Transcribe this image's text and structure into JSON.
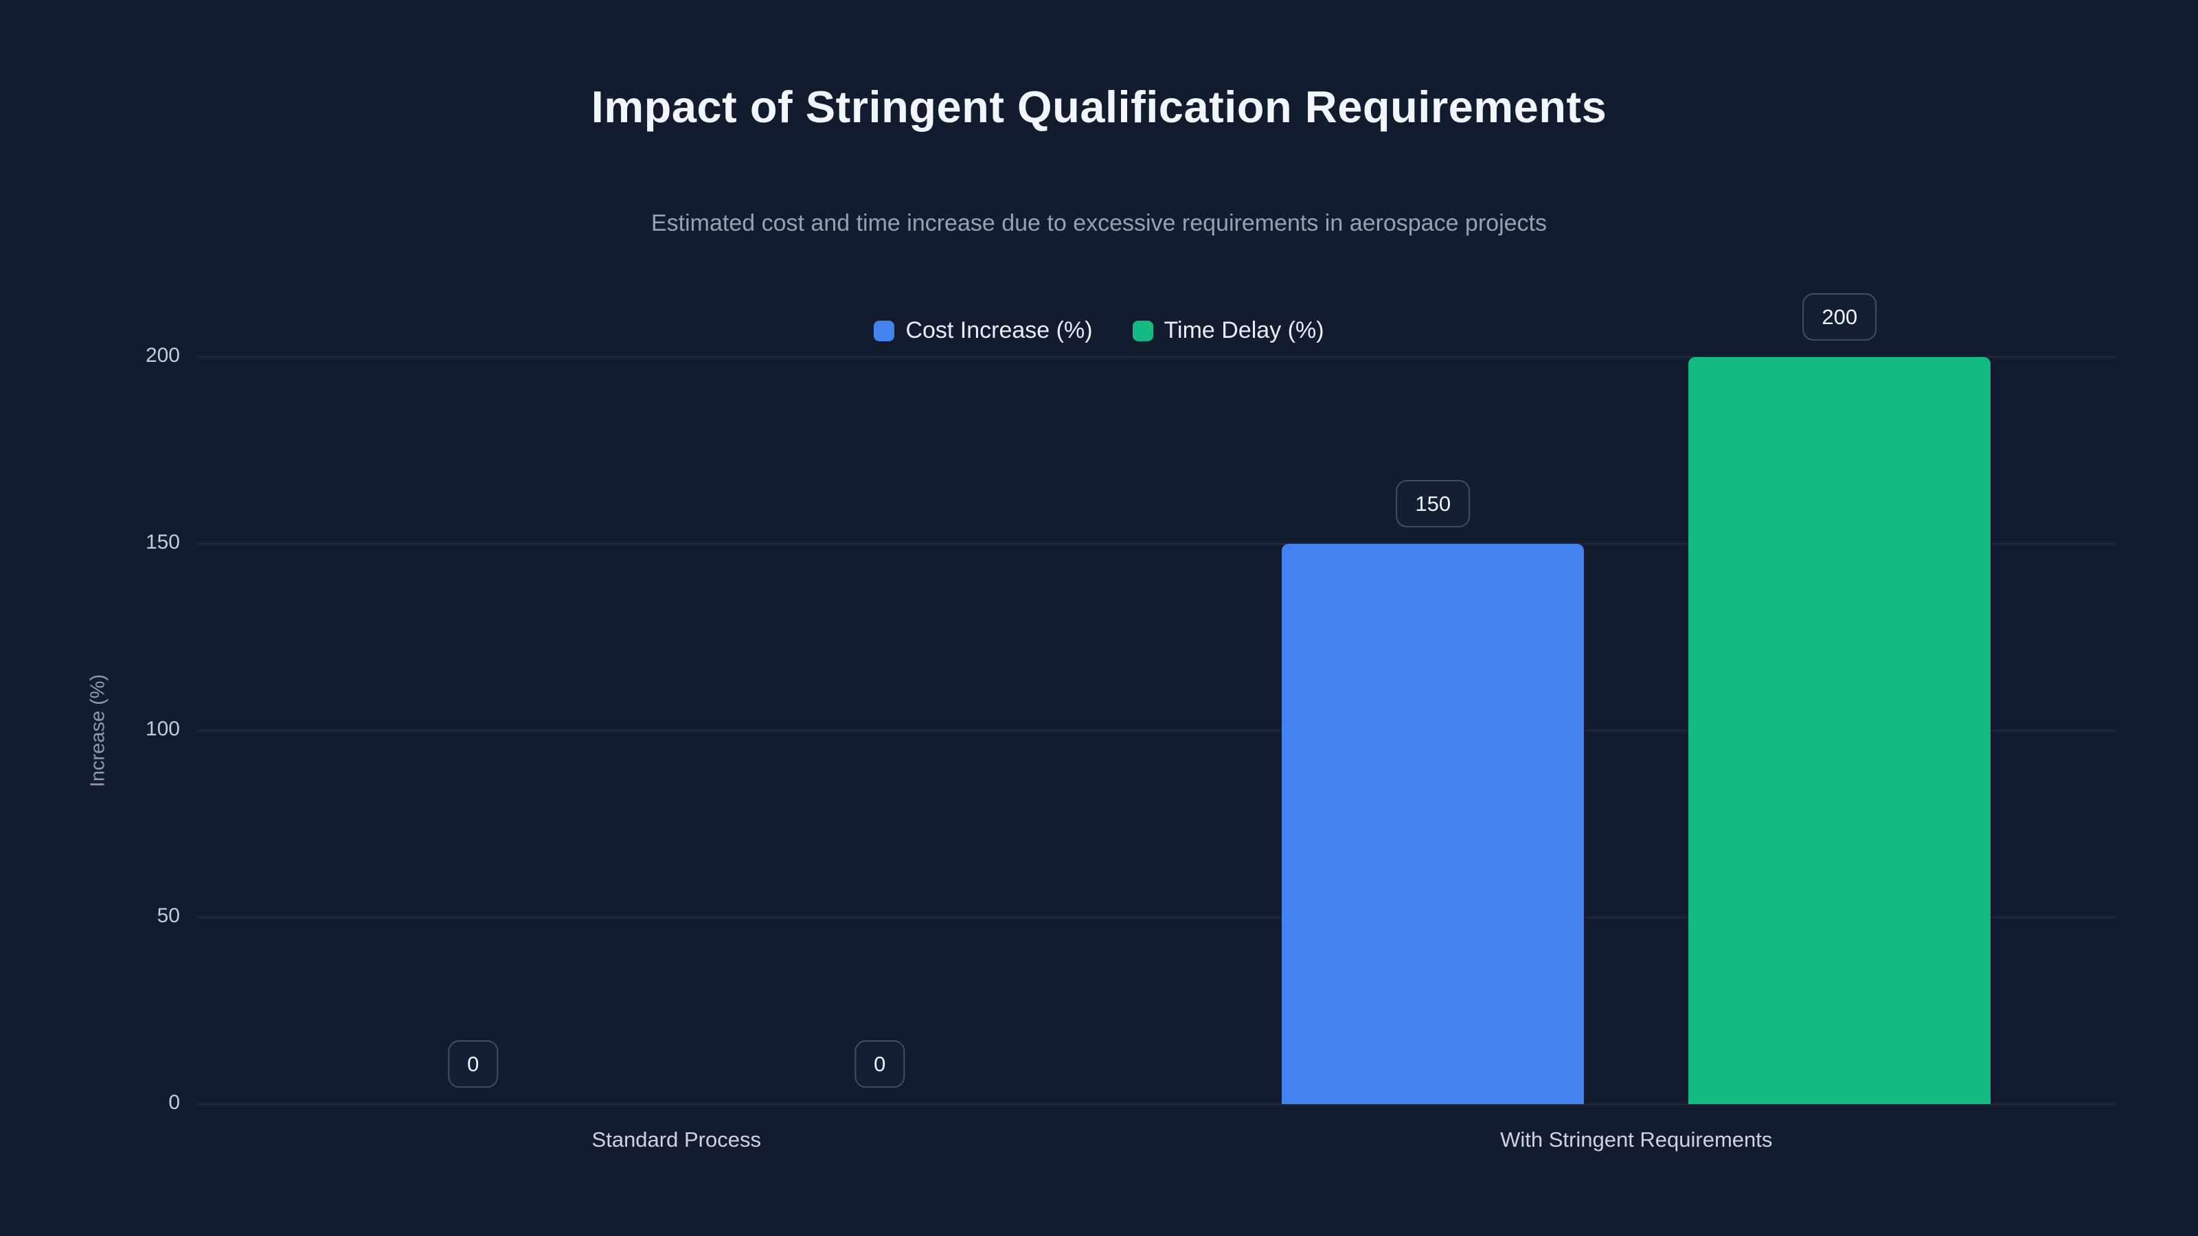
{
  "chart_data": {
    "type": "bar",
    "title": "Impact of Stringent Qualification Requirements",
    "subtitle": "Estimated cost and time increase due to excessive requirements in aerospace projects",
    "categories": [
      "Standard Process",
      "With Stringent Requirements"
    ],
    "series": [
      {
        "name": "Cost Increase (%)",
        "color": "#4482ee",
        "values": [
          0,
          150
        ]
      },
      {
        "name": "Time Delay (%)",
        "color": "#13ba81",
        "values": [
          0,
          200
        ]
      }
    ],
    "xlabel": "",
    "ylabel": "Increase (%)",
    "ylim": [
      0,
      200
    ],
    "yticks": [
      0,
      50,
      100,
      150,
      200
    ],
    "grid": true,
    "legend_position": "top",
    "value_labels": [
      "0",
      "0",
      "150",
      "200"
    ]
  },
  "colors": {
    "background": "#131c2e",
    "bar_blue": "#4482ee",
    "bar_green": "#13ba81",
    "gridline": "rgba(255,255,255,0.07)",
    "title_text": "#f2f5fa",
    "subtitle_text": "#96a1b2",
    "tick_text": "#c3ccd9",
    "badge_border": "#414d61",
    "badge_bg": "#151f33"
  }
}
